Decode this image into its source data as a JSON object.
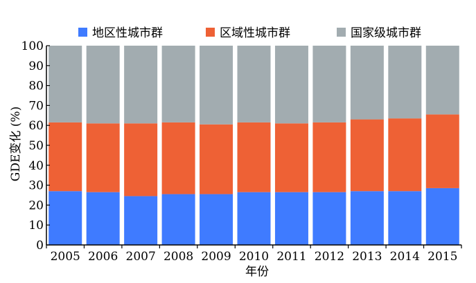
{
  "chart_data": {
    "type": "bar",
    "stacked": true,
    "categories": [
      "2005",
      "2006",
      "2007",
      "2008",
      "2009",
      "2010",
      "2011",
      "2012",
      "2013",
      "2014",
      "2015"
    ],
    "series": [
      {
        "name": "地区性城市群",
        "color": "#3f7bff",
        "values": [
          27,
          26.5,
          24.5,
          25.5,
          25.5,
          26.5,
          26.5,
          26.5,
          27,
          27,
          28.5
        ]
      },
      {
        "name": "区域性城市群",
        "color": "#ee6135",
        "values": [
          34.5,
          34.5,
          36.5,
          36,
          35,
          35,
          34.5,
          35,
          36,
          36.5,
          37
        ]
      },
      {
        "name": "国家级城市群",
        "color": "#a2acb0",
        "values": [
          38.5,
          39,
          39,
          38.5,
          39.5,
          38.5,
          39,
          38.5,
          37,
          36.5,
          34.5
        ]
      }
    ],
    "ylabel": "GDE变化 (%)",
    "xlabel": "年份",
    "ylim": [
      0,
      100
    ],
    "yticks": [
      0,
      10,
      20,
      30,
      40,
      50,
      60,
      70,
      80,
      90,
      100
    ],
    "legend_position": "top",
    "grid": false
  }
}
